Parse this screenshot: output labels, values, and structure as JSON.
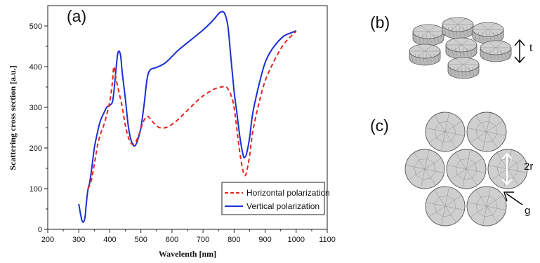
{
  "chart_data": {
    "type": "line",
    "panel_label": "(a)",
    "xlabel": "Wavelenth [nm]",
    "ylabel": "Scattering cross section [a.u.]",
    "xlim": [
      200,
      1100
    ],
    "ylim": [
      0,
      550
    ],
    "x_ticks": [
      200,
      300,
      400,
      500,
      600,
      700,
      800,
      900,
      1000,
      1100
    ],
    "y_ticks": [
      0,
      100,
      200,
      300,
      400,
      500
    ],
    "legend_position": "lower-right",
    "series": [
      {
        "name": "Horizontal polarization",
        "color": "#e8251e",
        "style": "dashed",
        "points": [
          [
            330,
            100
          ],
          [
            340,
            120
          ],
          [
            350,
            160
          ],
          [
            360,
            205
          ],
          [
            370,
            235
          ],
          [
            380,
            255
          ],
          [
            390,
            282
          ],
          [
            400,
            315
          ],
          [
            408,
            360
          ],
          [
            413,
            400
          ],
          [
            420,
            370
          ],
          [
            430,
            335
          ],
          [
            440,
            300
          ],
          [
            450,
            255
          ],
          [
            460,
            225
          ],
          [
            470,
            210
          ],
          [
            480,
            212
          ],
          [
            490,
            225
          ],
          [
            500,
            248
          ],
          [
            510,
            268
          ],
          [
            520,
            278
          ],
          [
            530,
            272
          ],
          [
            540,
            262
          ],
          [
            550,
            255
          ],
          [
            560,
            250
          ],
          [
            580,
            250
          ],
          [
            600,
            258
          ],
          [
            620,
            270
          ],
          [
            640,
            285
          ],
          [
            660,
            300
          ],
          [
            680,
            315
          ],
          [
            700,
            328
          ],
          [
            720,
            338
          ],
          [
            740,
            346
          ],
          [
            760,
            350
          ],
          [
            775,
            350
          ],
          [
            790,
            330
          ],
          [
            800,
            300
          ],
          [
            810,
            240
          ],
          [
            820,
            180
          ],
          [
            830,
            140
          ],
          [
            835,
            132
          ],
          [
            840,
            140
          ],
          [
            850,
            180
          ],
          [
            860,
            240
          ],
          [
            880,
            310
          ],
          [
            900,
            365
          ],
          [
            920,
            400
          ],
          [
            940,
            430
          ],
          [
            960,
            455
          ],
          [
            980,
            472
          ],
          [
            1000,
            487
          ]
        ]
      },
      {
        "name": "Vertical polarization",
        "color": "#1a2fd6",
        "style": "solid",
        "points": [
          [
            300,
            62
          ],
          [
            305,
            40
          ],
          [
            310,
            22
          ],
          [
            315,
            18
          ],
          [
            320,
            30
          ],
          [
            325,
            70
          ],
          [
            330,
            100
          ],
          [
            335,
            115
          ],
          [
            340,
            140
          ],
          [
            345,
            170
          ],
          [
            350,
            200
          ],
          [
            360,
            238
          ],
          [
            370,
            268
          ],
          [
            380,
            285
          ],
          [
            390,
            300
          ],
          [
            400,
            305
          ],
          [
            410,
            320
          ],
          [
            420,
            395
          ],
          [
            425,
            430
          ],
          [
            430,
            438
          ],
          [
            435,
            425
          ],
          [
            440,
            385
          ],
          [
            450,
            320
          ],
          [
            460,
            250
          ],
          [
            470,
            215
          ],
          [
            480,
            205
          ],
          [
            490,
            220
          ],
          [
            500,
            250
          ],
          [
            510,
            305
          ],
          [
            520,
            370
          ],
          [
            530,
            392
          ],
          [
            550,
            398
          ],
          [
            580,
            410
          ],
          [
            620,
            440
          ],
          [
            660,
            465
          ],
          [
            700,
            490
          ],
          [
            730,
            512
          ],
          [
            750,
            530
          ],
          [
            760,
            535
          ],
          [
            770,
            530
          ],
          [
            780,
            500
          ],
          [
            790,
            420
          ],
          [
            800,
            340
          ],
          [
            810,
            280
          ],
          [
            820,
            220
          ],
          [
            830,
            180
          ],
          [
            835,
            178
          ],
          [
            840,
            185
          ],
          [
            850,
            225
          ],
          [
            860,
            285
          ],
          [
            880,
            355
          ],
          [
            900,
            410
          ],
          [
            920,
            440
          ],
          [
            940,
            460
          ],
          [
            960,
            475
          ],
          [
            980,
            482
          ],
          [
            1000,
            488
          ]
        ]
      }
    ]
  },
  "panels": {
    "b_label": "(b)",
    "b_dim": "t",
    "c_label": "(c)",
    "c_dim_r": "2r",
    "c_dim_g": "g"
  },
  "colors": {
    "horizontal": "#e8251e",
    "vertical": "#1a2fd6",
    "disk_fill": "#cfcfcf",
    "disk_edge": "#555555"
  }
}
